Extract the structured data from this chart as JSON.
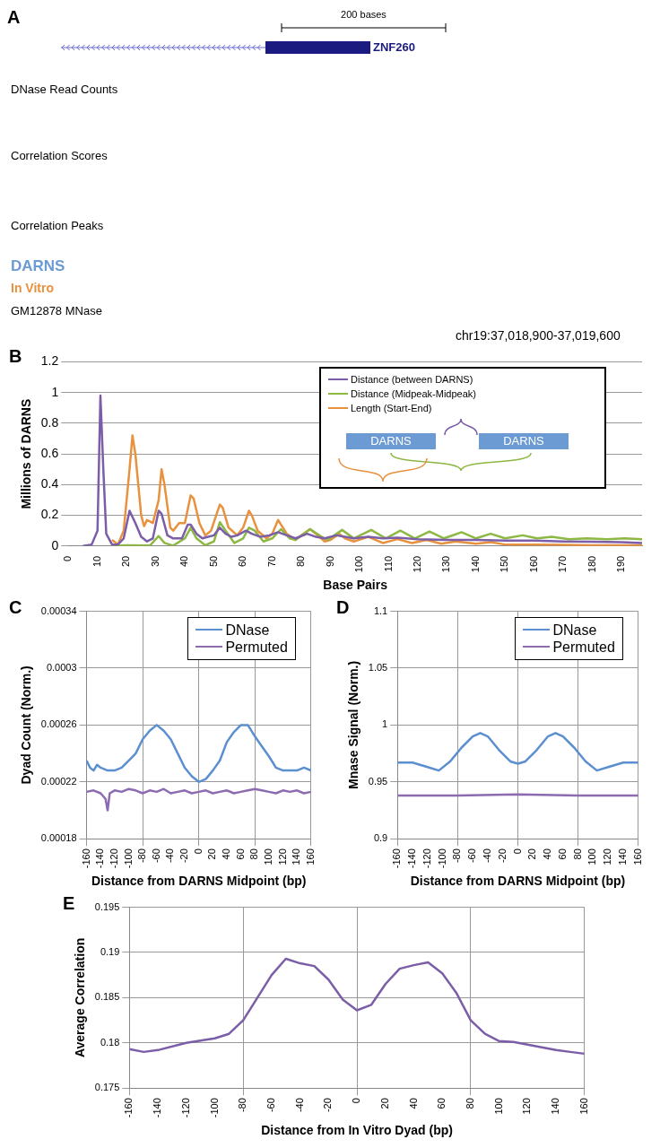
{
  "chart_data": [
    {
      "type": "other",
      "title": "A",
      "annotations": [
        "200 bases",
        "ZNF260",
        "DNase Read Counts",
        "Correlation Scores",
        "Correlation Peaks",
        "DARNS",
        "In Vitro",
        "GM12878 MNase",
        "chr19:37,018,900-37,019,600"
      ]
    },
    {
      "type": "line",
      "title": "B",
      "xlabel": "Base Pairs",
      "ylabel": "Millions of DARNS",
      "xlim": [
        0,
        197
      ],
      "xticks": [
        0,
        10,
        20,
        30,
        40,
        50,
        60,
        70,
        80,
        90,
        100,
        110,
        120,
        130,
        140,
        150,
        160,
        170,
        180,
        190
      ],
      "ylim": [
        0,
        1.2
      ],
      "yticks": [
        0,
        0.2,
        0.4,
        0.6,
        0.8,
        1,
        1.2
      ],
      "grid": "y",
      "legend": "top right",
      "marker": "none",
      "line_style": "solid",
      "annotations": [
        "DARNS",
        "DARNS"
      ],
      "series": [
        {
          "name": "Distance (between DARNS)",
          "color": "#7b5ea7",
          "x": [
            5,
            8,
            10,
            11,
            12,
            13,
            15,
            17,
            19,
            21,
            23,
            25,
            27,
            29,
            31,
            32,
            34,
            36,
            39,
            41,
            42,
            44,
            46,
            48,
            50,
            52,
            54,
            56,
            58,
            61,
            63,
            66,
            69,
            72,
            75,
            78,
            82,
            85,
            88,
            92,
            95,
            98,
            103,
            108,
            113,
            120,
            130,
            140,
            150,
            160,
            170,
            180,
            190,
            197
          ],
          "values": [
            0,
            0.01,
            0.1,
            0.98,
            0.5,
            0.08,
            0.01,
            0.01,
            0.05,
            0.23,
            0.15,
            0.06,
            0.03,
            0.05,
            0.23,
            0.21,
            0.07,
            0.05,
            0.05,
            0.14,
            0.14,
            0.08,
            0.05,
            0.06,
            0.07,
            0.12,
            0.08,
            0.06,
            0.07,
            0.1,
            0.08,
            0.06,
            0.07,
            0.09,
            0.07,
            0.05,
            0.08,
            0.06,
            0.05,
            0.07,
            0.06,
            0.05,
            0.06,
            0.05,
            0.055,
            0.045,
            0.04,
            0.04,
            0.035,
            0.035,
            0.03,
            0.028,
            0.025,
            0.02
          ]
        },
        {
          "name": "Distance (Midpeak-Midpeak)",
          "color": "#8db843",
          "x": [
            15,
            20,
            28,
            31,
            33,
            36,
            40,
            42,
            44,
            47,
            50,
            52,
            54,
            57,
            60,
            62,
            64,
            67,
            70,
            73,
            76,
            78,
            83,
            87,
            89,
            94,
            98,
            104,
            109,
            114,
            119,
            124,
            129,
            135,
            140,
            145,
            150,
            156,
            161,
            166,
            172,
            178,
            185,
            191,
            197
          ],
          "values": [
            0,
            0.005,
            0.003,
            0.065,
            0.02,
            0.003,
            0.05,
            0.12,
            0.05,
            0.005,
            0.03,
            0.155,
            0.1,
            0.02,
            0.05,
            0.12,
            0.1,
            0.03,
            0.05,
            0.11,
            0.05,
            0.04,
            0.11,
            0.06,
            0.04,
            0.105,
            0.05,
            0.105,
            0.05,
            0.1,
            0.05,
            0.095,
            0.05,
            0.09,
            0.05,
            0.08,
            0.05,
            0.07,
            0.05,
            0.06,
            0.045,
            0.05,
            0.045,
            0.05,
            0.045
          ]
        },
        {
          "name": "Length (Start-End)",
          "color": "#e8913e",
          "x": [
            15,
            17,
            19,
            21,
            22,
            23,
            25,
            26,
            27,
            29,
            31,
            32,
            33,
            35,
            36,
            38,
            40,
            42,
            43,
            45,
            47,
            49,
            52,
            53,
            55,
            58,
            60,
            62,
            63,
            65,
            68,
            70,
            72,
            73,
            75,
            78,
            80,
            83,
            85,
            88,
            90,
            93,
            95,
            98,
            103,
            108,
            113,
            118,
            123,
            128,
            133,
            140,
            145,
            150,
            160,
            170,
            180,
            197
          ],
          "values": [
            0.04,
            0.01,
            0.1,
            0.5,
            0.72,
            0.6,
            0.2,
            0.13,
            0.17,
            0.15,
            0.3,
            0.5,
            0.4,
            0.12,
            0.1,
            0.15,
            0.15,
            0.33,
            0.31,
            0.15,
            0.07,
            0.1,
            0.27,
            0.25,
            0.12,
            0.07,
            0.12,
            0.23,
            0.2,
            0.1,
            0.05,
            0.08,
            0.17,
            0.14,
            0.08,
            0.04,
            0.07,
            0.11,
            0.08,
            0.03,
            0.04,
            0.08,
            0.05,
            0.03,
            0.06,
            0.02,
            0.045,
            0.02,
            0.04,
            0.015,
            0.03,
            0.015,
            0.025,
            0.01,
            0.01,
            0.008,
            0.005,
            0.005
          ]
        }
      ]
    },
    {
      "type": "line",
      "title": "C",
      "xlabel": "Distance from DARNS Midpoint (bp)",
      "ylabel": "Dyad Count (Norm.)",
      "xlim": [
        -160,
        160
      ],
      "xticks": [
        -160,
        -140,
        -120,
        -100,
        -80,
        -60,
        -40,
        -20,
        0,
        20,
        40,
        60,
        80,
        100,
        120,
        140,
        160
      ],
      "ylim": [
        0.00018,
        0.00034
      ],
      "yticks": [
        0.00018,
        0.00022,
        0.00026,
        0.0003,
        0.00034
      ],
      "grid": true,
      "legend": "top right",
      "marker": "none",
      "line_style": "solid",
      "series": [
        {
          "name": "DNase",
          "color": "#5b8fcf",
          "x": [
            -160,
            -155,
            -150,
            -145,
            -140,
            -130,
            -120,
            -110,
            -100,
            -90,
            -80,
            -70,
            -60,
            -50,
            -40,
            -30,
            -20,
            -10,
            0,
            10,
            20,
            30,
            40,
            50,
            60,
            70,
            80,
            90,
            100,
            110,
            120,
            130,
            140,
            150,
            160
          ],
          "values": [
            0.000235,
            0.00023,
            0.000228,
            0.000232,
            0.00023,
            0.000228,
            0.000228,
            0.00023,
            0.000235,
            0.00024,
            0.00025,
            0.000256,
            0.00026,
            0.000256,
            0.00025,
            0.00024,
            0.00023,
            0.000224,
            0.00022,
            0.000222,
            0.000228,
            0.000235,
            0.000248,
            0.000255,
            0.00026,
            0.00026,
            0.000252,
            0.000245,
            0.000238,
            0.00023,
            0.000228,
            0.000228,
            0.000228,
            0.00023,
            0.000228
          ]
        },
        {
          "name": "Permuted",
          "color": "#8c6bb1",
          "x": [
            -160,
            -150,
            -140,
            -133,
            -130,
            -127,
            -120,
            -110,
            -100,
            -90,
            -80,
            -70,
            -60,
            -50,
            -40,
            -30,
            -20,
            -10,
            0,
            10,
            20,
            30,
            40,
            50,
            60,
            70,
            80,
            90,
            100,
            110,
            120,
            130,
            140,
            150,
            160
          ],
          "values": [
            0.000213,
            0.000214,
            0.000212,
            0.000208,
            0.0002,
            0.000212,
            0.000214,
            0.000213,
            0.000215,
            0.000214,
            0.000212,
            0.000214,
            0.000213,
            0.000215,
            0.000212,
            0.000213,
            0.000214,
            0.000212,
            0.000213,
            0.000214,
            0.000212,
            0.000213,
            0.000214,
            0.000212,
            0.000213,
            0.000214,
            0.000215,
            0.000214,
            0.000213,
            0.000212,
            0.000214,
            0.000213,
            0.000214,
            0.000212,
            0.000213
          ]
        }
      ]
    },
    {
      "type": "line",
      "title": "D",
      "xlabel": "Distance from DARNS Midpoint (bp)",
      "ylabel": "Mnase Signal (Norm.)",
      "xlim": [
        -160,
        160
      ],
      "xticks": [
        -160,
        -140,
        -120,
        -100,
        -80,
        -60,
        -40,
        -20,
        0,
        20,
        40,
        60,
        80,
        100,
        120,
        140,
        160
      ],
      "ylim": [
        0.9,
        1.1
      ],
      "yticks": [
        0.9,
        0.95,
        1,
        1.05,
        1.1
      ],
      "grid": true,
      "legend": "top right",
      "marker": "none",
      "line_style": "solid",
      "series": [
        {
          "name": "DNase",
          "color": "#5b8fcf",
          "x": [
            -160,
            -140,
            -120,
            -105,
            -90,
            -75,
            -60,
            -50,
            -40,
            -25,
            -10,
            0,
            10,
            25,
            40,
            50,
            60,
            75,
            90,
            105,
            120,
            140,
            160
          ],
          "values": [
            0.967,
            0.967,
            0.963,
            0.96,
            0.968,
            0.98,
            0.99,
            0.993,
            0.99,
            0.978,
            0.968,
            0.966,
            0.968,
            0.978,
            0.99,
            0.993,
            0.99,
            0.98,
            0.968,
            0.96,
            0.963,
            0.967,
            0.967
          ]
        },
        {
          "name": "Permuted",
          "color": "#8c6bb1",
          "x": [
            -160,
            -80,
            0,
            80,
            160
          ],
          "values": [
            0.938,
            0.938,
            0.939,
            0.938,
            0.938
          ]
        }
      ]
    },
    {
      "type": "line",
      "title": "E",
      "xlabel": "Distance from In Vitro Dyad (bp)",
      "ylabel": "Average Correlation",
      "xlim": [
        -160,
        160
      ],
      "xticks": [
        -160,
        -140,
        -120,
        -100,
        -80,
        -60,
        -40,
        -20,
        0,
        20,
        40,
        60,
        80,
        100,
        120,
        140,
        160
      ],
      "ylim": [
        0.175,
        0.195
      ],
      "yticks": [
        0.175,
        0.18,
        0.185,
        0.19,
        0.195
      ],
      "grid": true,
      "marker": "none",
      "line_style": "solid",
      "series": [
        {
          "color": "#7b5ea7",
          "x": [
            -160,
            -150,
            -140,
            -120,
            -100,
            -90,
            -80,
            -70,
            -60,
            -50,
            -40,
            -30,
            -20,
            -10,
            0,
            10,
            20,
            30,
            40,
            50,
            60,
            70,
            80,
            90,
            100,
            110,
            120,
            130,
            140,
            150,
            160
          ],
          "values": [
            0.1793,
            0.179,
            0.1792,
            0.18,
            0.1805,
            0.181,
            0.1825,
            0.185,
            0.1875,
            0.1893,
            0.1888,
            0.1885,
            0.187,
            0.1848,
            0.1836,
            0.1842,
            0.1865,
            0.1882,
            0.1886,
            0.1889,
            0.1877,
            0.1855,
            0.1825,
            0.181,
            0.1802,
            0.1801,
            0.1798,
            0.1795,
            0.1792,
            0.179,
            0.1788
          ]
        }
      ]
    }
  ]
}
